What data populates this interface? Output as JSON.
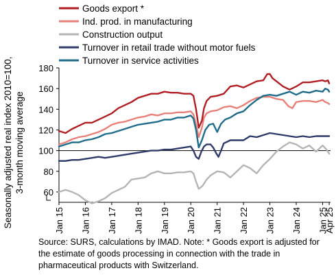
{
  "source_note": "Source: SURS, calculations by IMAD. Note: * Goods export is adjusted for the estimate of goods processing in connection with the trade in pharmaceutical products with Switzerland.",
  "chart_data": {
    "type": "line",
    "title": "",
    "xlabel": "",
    "ylabel": [
      "Seasonally adjusted real index 2010=100,",
      "3-month moving average"
    ],
    "ylim": [
      50,
      180
    ],
    "y_axis_break": true,
    "yticks": [
      60,
      80,
      100,
      120,
      140,
      160,
      180
    ],
    "x_tick_labels": [
      "Jan 15",
      "Jan 16",
      "Jan 17",
      "Jan 18",
      "Jan 19",
      "Jan 20",
      "Jan 21",
      "Jan 22",
      "Jan 23",
      "Jan 24",
      "Jan 25",
      "Apr 25"
    ],
    "x_tick_positions": [
      2015,
      2016,
      2017,
      2018,
      2019,
      2020,
      2021,
      2022,
      2023,
      2024,
      2025,
      2025.25
    ],
    "xlim": [
      2015,
      2025.3
    ],
    "reference_line": 100,
    "grid": false,
    "legend_position": "top",
    "series": [
      {
        "name": "Goods export *",
        "color": "#B01E23",
        "x": [
          2015,
          2015.25,
          2015.5,
          2015.75,
          2016,
          2016.25,
          2016.5,
          2016.75,
          2017,
          2017.25,
          2017.5,
          2017.75,
          2018,
          2018.25,
          2018.5,
          2018.75,
          2019,
          2019.25,
          2019.5,
          2019.75,
          2020,
          2020.1,
          2020.2,
          2020.3,
          2020.42,
          2020.5,
          2020.6,
          2020.75,
          2021,
          2021.25,
          2021.5,
          2021.75,
          2022,
          2022.25,
          2022.5,
          2022.75,
          2022.9,
          2023,
          2023.1,
          2023.25,
          2023.5,
          2023.75,
          2024,
          2024.25,
          2024.5,
          2024.75,
          2025,
          2025.1,
          2025.2,
          2025.25
        ],
        "y": [
          119,
          117,
          121,
          124,
          127,
          127,
          130,
          133,
          136,
          141,
          144,
          147,
          151,
          153,
          155,
          155,
          157,
          156,
          156,
          155,
          155,
          153,
          140,
          122,
          129,
          141,
          148,
          152,
          153,
          155,
          162,
          163,
          161,
          164,
          167,
          168,
          174,
          174,
          170,
          167,
          162,
          159,
          162,
          166,
          166,
          167,
          168,
          167,
          168,
          165
        ]
      },
      {
        "name": "Ind. prod. in manufacturing",
        "color": "#E8807A",
        "x": [
          2015,
          2015.25,
          2015.5,
          2015.75,
          2016,
          2016.25,
          2016.5,
          2016.75,
          2017,
          2017.25,
          2017.5,
          2017.75,
          2018,
          2018.25,
          2018.5,
          2018.75,
          2019,
          2019.25,
          2019.5,
          2019.75,
          2020,
          2020.1,
          2020.2,
          2020.3,
          2020.42,
          2020.5,
          2020.6,
          2020.75,
          2021,
          2021.25,
          2021.5,
          2021.75,
          2022,
          2022.25,
          2022.5,
          2022.75,
          2023,
          2023.25,
          2023.5,
          2023.7,
          2023.85,
          2024,
          2024.25,
          2024.5,
          2024.75,
          2025,
          2025.1,
          2025.2,
          2025.25
        ],
        "y": [
          106,
          108,
          111,
          113,
          114,
          116,
          118,
          121,
          125,
          127,
          128,
          130,
          132,
          133,
          135,
          134,
          136,
          136,
          137,
          137,
          138,
          135,
          125,
          113,
          122,
          132,
          136,
          138,
          139,
          142,
          143,
          141,
          144,
          148,
          151,
          152,
          152,
          150,
          149,
          143,
          141,
          147,
          148,
          148,
          147,
          149,
          147,
          146,
          145
        ]
      },
      {
        "name": "Construction output",
        "color": "#B4B4B4",
        "x": [
          2015,
          2015.25,
          2015.5,
          2015.75,
          2016,
          2016.25,
          2016.5,
          2016.75,
          2017,
          2017.25,
          2017.5,
          2017.75,
          2018,
          2018.25,
          2018.5,
          2018.75,
          2019,
          2019.25,
          2019.5,
          2019.75,
          2020,
          2020.1,
          2020.2,
          2020.3,
          2020.45,
          2020.6,
          2020.75,
          2021,
          2021.25,
          2021.5,
          2021.75,
          2022,
          2022.25,
          2022.5,
          2022.75,
          2023,
          2023.25,
          2023.5,
          2023.75,
          2024,
          2024.25,
          2024.5,
          2024.75,
          2025,
          2025.15,
          2025.25
        ],
        "y": [
          60,
          62,
          60,
          57,
          52,
          49,
          51,
          54,
          59,
          62,
          65,
          72,
          73,
          74,
          78,
          80,
          78,
          78,
          79,
          79,
          80,
          78,
          70,
          63,
          66,
          72,
          76,
          80,
          79,
          74,
          80,
          86,
          83,
          78,
          86,
          92,
          99,
          104,
          108,
          106,
          102,
          105,
          99,
          105,
          101,
          97
        ]
      },
      {
        "name": "Turnover in retail trade without motor fuels",
        "color": "#2E3A68",
        "x": [
          2015,
          2015.25,
          2015.5,
          2015.75,
          2016,
          2016.25,
          2016.5,
          2016.75,
          2017,
          2017.25,
          2017.5,
          2017.75,
          2018,
          2018.25,
          2018.5,
          2018.75,
          2019,
          2019.25,
          2019.5,
          2019.75,
          2020,
          2020.1,
          2020.2,
          2020.3,
          2020.4,
          2020.5,
          2020.6,
          2020.75,
          2020.85,
          2020.95,
          2021.05,
          2021.15,
          2021.25,
          2021.5,
          2021.75,
          2022,
          2022.25,
          2022.5,
          2022.75,
          2023,
          2023.25,
          2023.5,
          2023.75,
          2024,
          2024.25,
          2024.5,
          2024.75,
          2025,
          2025.25
        ],
        "y": [
          90,
          90,
          91,
          91,
          92,
          93,
          94,
          93,
          94,
          95,
          96,
          97,
          98,
          99,
          100,
          100,
          101,
          101,
          102,
          103,
          104,
          100,
          94,
          92,
          99,
          104,
          106,
          106,
          103,
          98,
          94,
          100,
          107,
          110,
          110,
          110,
          114,
          113,
          115,
          117,
          116,
          115,
          114,
          113,
          114,
          113,
          114,
          114,
          114
        ]
      },
      {
        "name": "Turnover in service activities",
        "color": "#1E6C8A",
        "x": [
          2015,
          2015.25,
          2015.5,
          2015.75,
          2016,
          2016.25,
          2016.5,
          2016.75,
          2017,
          2017.25,
          2017.5,
          2017.75,
          2018,
          2018.25,
          2018.5,
          2018.75,
          2019,
          2019.25,
          2019.5,
          2019.75,
          2020,
          2020.1,
          2020.2,
          2020.3,
          2020.42,
          2020.55,
          2020.7,
          2020.85,
          2021,
          2021.15,
          2021.3,
          2021.5,
          2021.75,
          2022,
          2022.25,
          2022.5,
          2022.75,
          2023,
          2023.25,
          2023.5,
          2023.75,
          2024,
          2024.25,
          2024.5,
          2024.75,
          2025,
          2025.1,
          2025.2,
          2025.25
        ],
        "y": [
          104,
          106,
          108,
          108,
          110,
          111,
          113,
          116,
          117,
          119,
          121,
          123,
          125,
          126,
          127,
          128,
          130,
          130,
          132,
          132,
          134,
          131,
          120,
          103,
          110,
          120,
          125,
          126,
          118,
          126,
          130,
          132,
          136,
          138,
          144,
          149,
          153,
          154,
          153,
          155,
          157,
          154,
          157,
          156,
          158,
          157,
          160,
          159,
          157
        ]
      }
    ]
  }
}
